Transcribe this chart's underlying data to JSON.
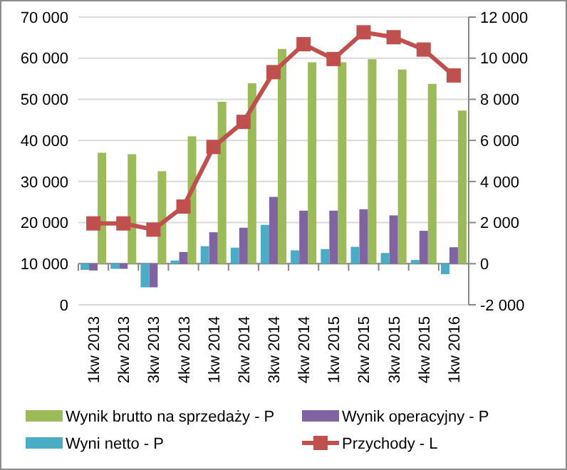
{
  "chart_data": {
    "type": "bar",
    "categories": [
      "1kw 2013",
      "2kw 2013",
      "3kw 2013",
      "4kw 2013",
      "1kw 2014",
      "2kw 2014",
      "3kw 2014",
      "4kw 2014",
      "1kw 2015",
      "2kw 2015",
      "3kw 2015",
      "4kw 2015",
      "1kw 2016"
    ],
    "series": [
      {
        "name": "Wynik brutto na sprzedaży - P",
        "color": "#9bbb59",
        "axis": "y2",
        "values": [
          5400,
          5330,
          4500,
          6200,
          7880,
          8780,
          10450,
          9800,
          9800,
          9950,
          9450,
          8750,
          7450
        ]
      },
      {
        "name": "Wynik operacyjny - P",
        "color": "#8064a2",
        "axis": "y2",
        "values": [
          -330,
          -250,
          -1150,
          570,
          1530,
          1750,
          3250,
          2580,
          2580,
          2650,
          2350,
          1600,
          800
        ]
      },
      {
        "name": "Wyni netto - P",
        "color": "#4bacc6",
        "axis": "y2",
        "values": [
          -300,
          -250,
          -1150,
          150,
          850,
          780,
          1890,
          650,
          710,
          820,
          520,
          180,
          -510
        ]
      },
      {
        "name": "Przychody - L",
        "color": "#c0504d",
        "type": "line",
        "marker": "square",
        "values": [
          19800,
          19800,
          18300,
          23900,
          38400,
          44500,
          56600,
          63400,
          59800,
          66300,
          65100,
          62100,
          55800
        ]
      }
    ],
    "ylim": [
      0,
      70000
    ],
    "yticks": [
      0,
      {
        "value": 10000,
        "label": "10 000"
      },
      {
        "value": 20000,
        "label": "20 000"
      },
      {
        "value": 30000,
        "label": "30 000"
      },
      {
        "value": 40000,
        "label": "40 000"
      },
      {
        "value": 50000,
        "label": "50 000"
      },
      {
        "value": 60000,
        "label": "60 000"
      },
      {
        "value": 70000,
        "label": "70 000"
      }
    ],
    "y2lim": [
      -2000,
      12000
    ],
    "y2ticks": [
      {
        "value": -2000,
        "label": "-2 000"
      },
      0,
      {
        "value": 2000,
        "label": "2 000"
      },
      {
        "value": 4000,
        "label": "4 000"
      },
      {
        "value": 6000,
        "label": "6 000"
      },
      {
        "value": 8000,
        "label": "8 000"
      },
      {
        "value": 10000,
        "label": "10 000"
      },
      {
        "value": 12000,
        "label": "12 000"
      }
    ],
    "grid": "y",
    "legend": "bottom"
  }
}
